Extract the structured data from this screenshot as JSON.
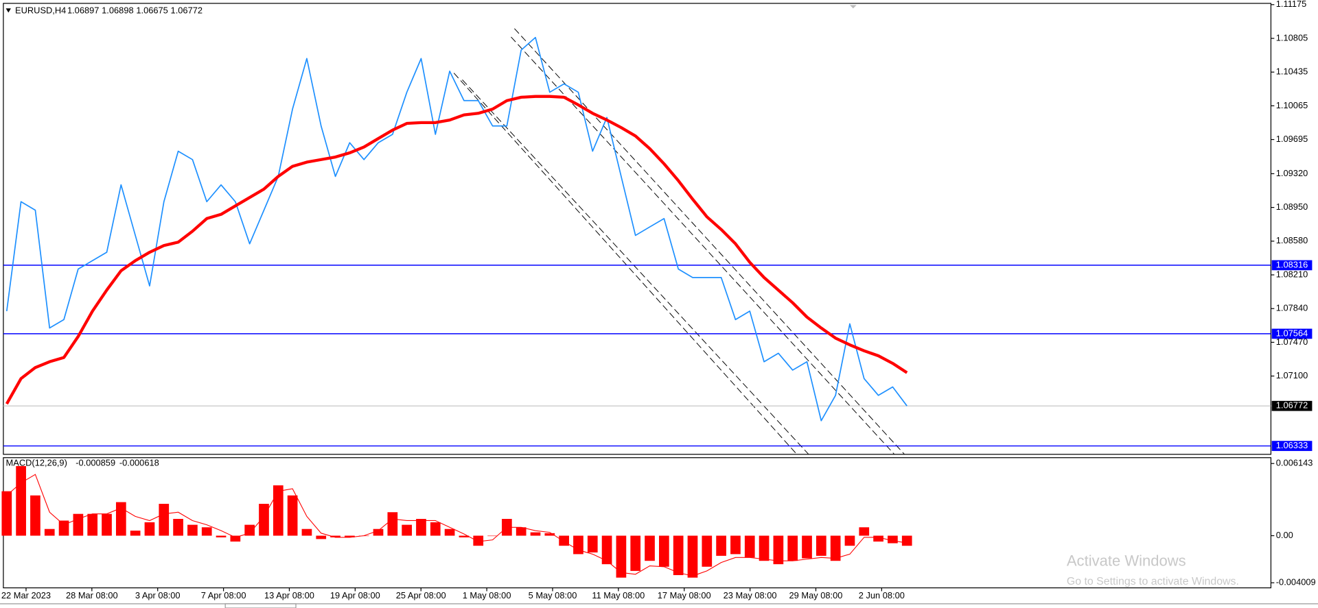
{
  "chart_data": [
    {
      "type": "line",
      "title": "EURUSD,H4",
      "ohlc": [
        1.06897,
        1.06898,
        1.06675,
        1.06772
      ],
      "ylim": [
        1.06241,
        1.1118
      ],
      "yticks": [
        1.11175,
        1.10805,
        1.10435,
        1.10065,
        1.09695,
        {
          "value": 1.0932,
          "label": "1.09320"
        },
        {
          "value": 1.0895,
          "label": "1.08950"
        },
        {
          "value": 1.0858,
          "label": "1.08580"
        },
        {
          "value": 1.0821,
          "label": "1.08210"
        },
        {
          "value": 1.0784,
          "label": "1.07840"
        },
        {
          "value": 1.0747,
          "label": "1.07470"
        },
        {
          "value": 1.071,
          "label": "1.07100"
        }
      ],
      "hlines": [
        {
          "value": 1.08316,
          "color": "#0000ff"
        },
        {
          "value": 1.07564,
          "color": "#0000ff"
        },
        {
          "value": 1.06333,
          "color": "#0000ff"
        }
      ],
      "current_price": 1.06772,
      "series": [
        {
          "color": "#1e90ff",
          "values": [
            1.07812,
            1.09013,
            1.0892,
            1.07627,
            1.07719,
            1.08274,
            1.08366,
            1.08458,
            1.09198,
            1.08643,
            1.08089,
            1.09013,
            1.09567,
            1.09475,
            1.09013,
            1.09198,
            1.09013,
            1.08551,
            1.0892,
            1.0929,
            1.10029,
            1.10584,
            1.09844,
            1.0929,
            1.0966,
            1.09475,
            1.0966,
            1.09752,
            1.10214,
            1.10584,
            1.09752,
            1.10445,
            1.10122,
            1.10122,
            1.09844,
            1.09844,
            1.10676,
            1.10815,
            1.10214,
            1.10306,
            1.10214,
            1.09567,
            1.09937,
            1.0929,
            1.08643,
            1.08736,
            1.08828,
            1.08274,
            1.08181,
            1.08181,
            1.08181,
            1.07719,
            1.07812,
            1.07257,
            1.0735,
            1.07165,
            1.07257,
            1.0661,
            1.06888,
            1.07673,
            1.07072,
            1.06888,
            1.0698,
            1.06772
          ]
        },
        {
          "color": "#ff0000",
          "values": [
            1.06795,
            1.07072,
            1.07193,
            1.07257,
            1.07303,
            1.07534,
            1.07812,
            1.08043,
            1.08255,
            1.08366,
            1.08458,
            1.08532,
            1.08569,
            1.08689,
            1.08828,
            1.08874,
            1.08967,
            1.09059,
            1.09151,
            1.0929,
            1.09401,
            1.09447,
            1.09475,
            1.09503,
            1.09549,
            1.09613,
            1.09706,
            1.09798,
            1.09872,
            1.09881,
            1.09881,
            1.09909,
            1.09965,
            1.09983,
            1.10029,
            1.10122,
            1.10159,
            1.10168,
            1.10168,
            1.10159,
            1.10075,
            1.09983,
            1.09909,
            1.09826,
            1.09734,
            1.09595,
            1.09429,
            1.09244,
            1.09041,
            1.08847,
            1.08708,
            1.08551,
            1.08348,
            1.08181,
            1.08043,
            1.07904,
            1.07747,
            1.07627,
            1.07516,
            1.07442,
            1.07377,
            1.07322,
            1.07239,
            1.07137
          ]
        }
      ]
    },
    {
      "type": "bar",
      "title": "MACD(12,26,9)",
      "readout": [
        -0.000859,
        -0.000618
      ],
      "ylim": [
        -0.00444,
        0.00664
      ],
      "yticks": [
        0.006143,
        {
          "value": 0,
          "label": "0.00"
        },
        -0.004009
      ],
      "histogram": {
        "color": "#ff0000",
        "values": [
          0.003784,
          0.005926,
          0.003427,
          0.000571,
          0.001285,
          0.001856,
          0.001856,
          0.001856,
          0.002856,
          0.000428,
          0.001142,
          0.002713,
          0.001428,
          0.000928,
          0.000714,
          -0.000143,
          -0.0005,
          0.000928,
          0.002713,
          0.004284,
          0.003427,
          0.000571,
          -0.000286,
          -0.000143,
          -0.000143,
          0,
          0.000571,
          0.001999,
          0.000928,
          0.001428,
          0.001142,
          0.000571,
          -0.000143,
          -0.000857,
          0,
          0.001428,
          0.000714,
          0.000286,
          0.000214,
          -0.000857,
          -0.001571,
          -0.001428,
          -0.002428,
          -0.00357,
          -0.002999,
          -0.002142,
          -0.002642,
          -0.003356,
          -0.00357,
          -0.002642,
          -0.001714,
          -0.001571,
          -0.001856,
          -0.002142,
          -0.002428,
          -0.002142,
          -0.001928,
          -0.001714,
          -0.002142,
          -0.000857,
          0.000714,
          -0.0005,
          -0.000643,
          -0.000859
        ]
      },
      "signal": {
        "color": "#ff0000",
        "values": [
          0.003427,
          0.004498,
          0.005212,
          0.001999,
          0.000928,
          0.001428,
          0.001856,
          0.001856,
          0.002356,
          0.001642,
          0.001285,
          0.001856,
          0.001999,
          0.001285,
          0.000928,
          0.000428,
          -0.000143,
          0.000214,
          0.001642,
          0.003784,
          0.003998,
          0.001642,
          0.000214,
          -0.000143,
          -0.000143,
          0,
          0.000428,
          0.001428,
          0.001285,
          0.001285,
          0.001285,
          0.000714,
          0.000143,
          -0.0005,
          -0.000357,
          0.000714,
          0.000714,
          0.000428,
          0.000286,
          -0.0005,
          -0.001214,
          -0.001571,
          -0.002142,
          -0.003142,
          -0.003284,
          -0.00257,
          -0.002642,
          -0.003142,
          -0.003427,
          -0.002999,
          -0.002285,
          -0.001856,
          -0.001856,
          -0.001999,
          -0.002142,
          -0.002142,
          -0.001999,
          -0.001856,
          -0.001928,
          -0.001571,
          -0.000143,
          -0.000143,
          -0.000428,
          -0.000618
        ]
      },
      "x_labels": [
        "22 Mar 2023",
        "28 Mar 08:00",
        "3 Apr 08:00",
        "7 Apr 08:00",
        "13 Apr 08:00",
        "19 Apr 08:00",
        "25 Apr 08:00",
        "1 May 08:00",
        "5 May 08:00",
        "11 May 08:00",
        "17 May 08:00",
        "23 May 08:00",
        "29 May 08:00",
        "2 Jun 08:00"
      ]
    }
  ],
  "watermark": {
    "title": "Activate Windows",
    "text": "Go to Settings to activate Windows."
  }
}
